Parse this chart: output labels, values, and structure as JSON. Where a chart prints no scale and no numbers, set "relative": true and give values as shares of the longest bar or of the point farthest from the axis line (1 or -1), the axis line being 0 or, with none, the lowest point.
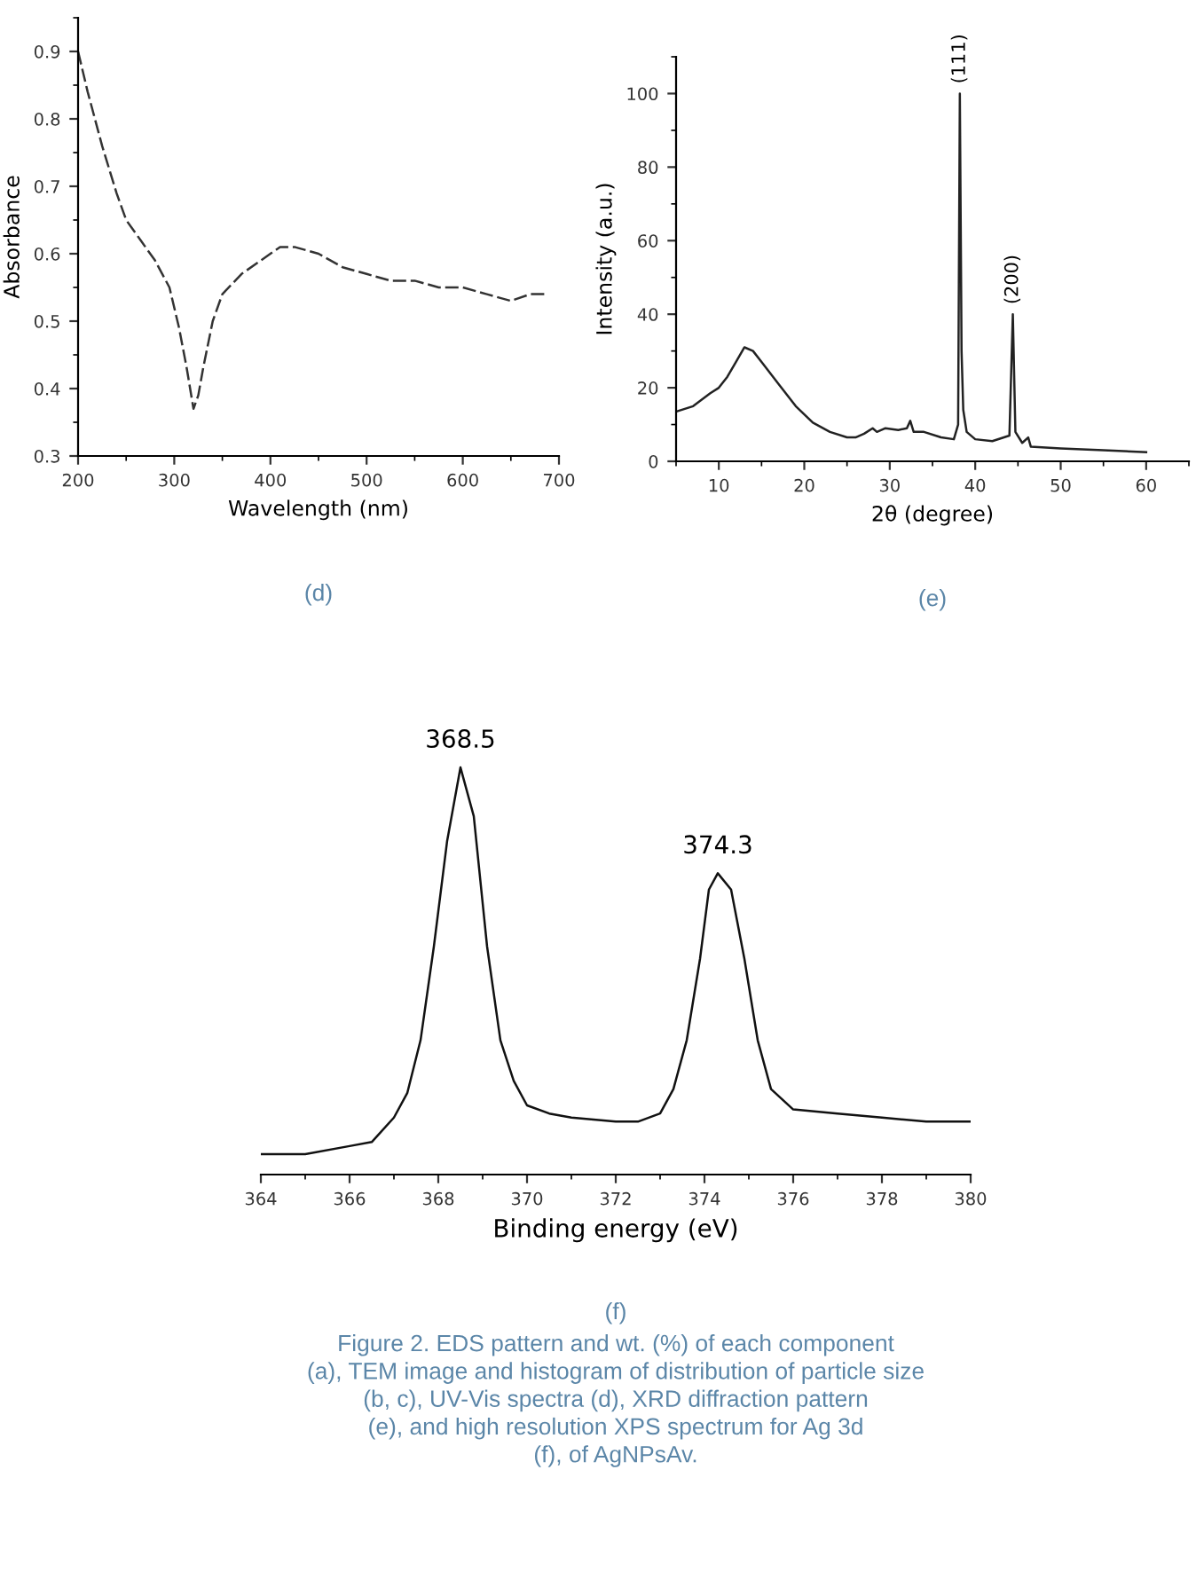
{
  "chart_data": [
    {
      "type": "line",
      "xlabel": "Wavelength (nm)",
      "ylabel": "Absorbance",
      "line_style": "dashed",
      "grid": false,
      "xlim": [
        200,
        700
      ],
      "ylim": [
        0.3,
        0.95
      ],
      "xticks": [
        200,
        300,
        400,
        500,
        600,
        700
      ],
      "yticks": [
        0.3,
        0.4,
        0.5,
        0.6,
        0.7,
        0.8,
        0.9
      ],
      "series": [
        {
          "color": "#333333",
          "x": [
            200,
            210,
            225,
            240,
            250,
            265,
            280,
            295,
            305,
            313,
            320,
            325,
            330,
            340,
            350,
            370,
            390,
            410,
            425,
            450,
            475,
            500,
            525,
            550,
            575,
            600,
            625,
            650,
            670,
            685
          ],
          "values": [
            0.9,
            0.84,
            0.76,
            0.69,
            0.65,
            0.62,
            0.59,
            0.55,
            0.49,
            0.43,
            0.37,
            0.39,
            0.43,
            0.5,
            0.54,
            0.57,
            0.59,
            0.61,
            0.61,
            0.6,
            0.58,
            0.57,
            0.56,
            0.56,
            0.55,
            0.55,
            0.54,
            0.53,
            0.54,
            0.54
          ]
        }
      ],
      "annotations": [
        "(d)"
      ]
    },
    {
      "type": "line",
      "xlabel": "2θ (degree)",
      "ylabel": "Intensity (a.u.)",
      "line_style": "solid",
      "grid": false,
      "xlim": [
        5,
        65
      ],
      "ylim": [
        0,
        110
      ],
      "xticks": [
        10,
        20,
        30,
        40,
        50,
        60
      ],
      "yticks": [
        0,
        20,
        40,
        60,
        80,
        100
      ],
      "series": [
        {
          "color": "#222222",
          "x": [
            5,
            7,
            9,
            10,
            11,
            12,
            13,
            14,
            15,
            17,
            19,
            21,
            23,
            25,
            26,
            27,
            28,
            28.5,
            29.5,
            31,
            32,
            32.4,
            32.8,
            34,
            36,
            37.5,
            38,
            38.2,
            38.4,
            38.6,
            39,
            40,
            42,
            44,
            44.4,
            44.7,
            45.5,
            46.2,
            46.5,
            50,
            55,
            60
          ],
          "values": [
            13.5,
            15,
            18.5,
            20,
            23,
            27,
            31,
            30,
            27,
            21,
            15,
            10.5,
            8,
            6.5,
            6.5,
            7.5,
            9,
            8,
            9,
            8.5,
            9,
            11,
            8,
            8,
            6.5,
            6,
            10,
            100,
            30,
            14,
            8,
            6,
            5.5,
            7,
            40,
            8,
            5,
            6.5,
            4,
            3.5,
            3,
            2.5
          ]
        }
      ],
      "annotations": [
        {
          "text": "(111)",
          "x": 38.2,
          "y": 100
        },
        {
          "text": "(200)",
          "x": 44.4,
          "y": 40
        },
        "(e)"
      ]
    },
    {
      "type": "line",
      "xlabel": "Binding energy (eV)",
      "relative": true,
      "line_style": "solid",
      "grid": false,
      "xlim": [
        364,
        380
      ],
      "xticks": [
        364,
        366,
        368,
        370,
        372,
        374,
        376,
        378,
        380
      ],
      "series": [
        {
          "color": "#111111",
          "x": [
            364,
            365,
            366,
            366.5,
            367,
            367.3,
            367.6,
            367.9,
            368.2,
            368.5,
            368.8,
            369.1,
            369.4,
            369.7,
            370,
            370.5,
            371,
            372,
            372.5,
            373,
            373.3,
            373.6,
            373.9,
            374.1,
            374.3,
            374.6,
            374.9,
            375.2,
            375.5,
            376,
            377,
            378,
            379,
            380
          ],
          "values": [
            0.05,
            0.05,
            0.07,
            0.08,
            0.14,
            0.2,
            0.33,
            0.56,
            0.82,
            1,
            0.88,
            0.56,
            0.33,
            0.23,
            0.17,
            0.15,
            0.14,
            0.13,
            0.13,
            0.15,
            0.21,
            0.33,
            0.53,
            0.7,
            0.74,
            0.7,
            0.53,
            0.33,
            0.21,
            0.16,
            0.15,
            0.14,
            0.13,
            0.13
          ]
        }
      ],
      "annotations": [
        {
          "text": "368.5",
          "x": 368.5,
          "y": 1
        },
        {
          "text": "374.3",
          "x": 374.3,
          "y": 0.74
        },
        "(f)",
        "Figure 2. EDS pattern and wt. (%) of each component\n(a), TEM image and histogram of distribution of particle size\n(b, c), UV-Vis spectra (d), XRD diffraction pattern\n(e), and high resolution XPS spectrum for Ag 3d\n(f), of AgNPsAv."
      ]
    }
  ]
}
